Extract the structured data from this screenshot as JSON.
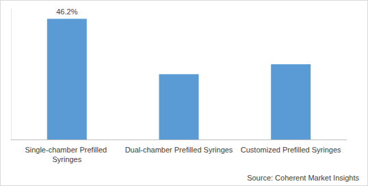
{
  "chart_data": {
    "type": "bar",
    "categories": [
      "Single-chamber Prefilled Syringes",
      "Dual-chamber Prefilled Syringes",
      "Customized Prefilled Syringes"
    ],
    "values": [
      46.2,
      25.0,
      28.8
    ],
    "value_labels": [
      "46.2%",
      null,
      null
    ],
    "data_labels": true,
    "color": "#5b9bd5",
    "ylim": [
      0,
      50
    ],
    "grid": false,
    "tick_labels": "x",
    "source": "Source: Coherent Market Insights"
  }
}
